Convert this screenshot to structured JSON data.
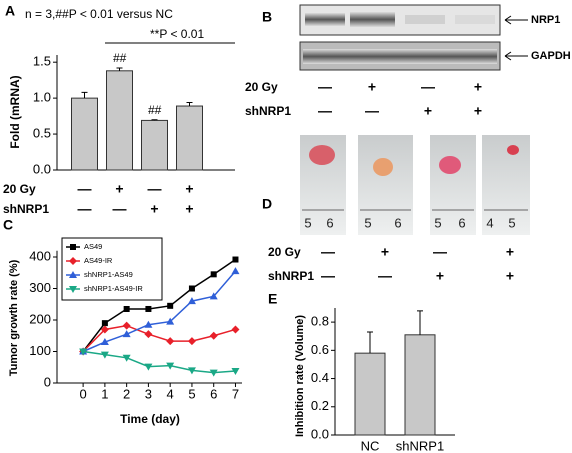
{
  "chart_data": [
    {
      "type": "bar",
      "panel": "A",
      "y_label": "Fold (mRNA)",
      "annotations": [
        "n = 3,##P < 0.01 versus NC",
        "**P < 0.01"
      ],
      "categories": [
        null,
        null,
        null,
        null
      ],
      "values": [
        1.0,
        1.38,
        0.69,
        0.89
      ],
      "errors": [
        0.08,
        0.04,
        0.01,
        0.05
      ],
      "bar_labels": [
        null,
        "##",
        "##",
        null
      ],
      "color": "#c8c8c8",
      "ylim": [
        0,
        1.6
      ],
      "yticks": [
        {
          "value": 0,
          "label": "0.0"
        },
        {
          "value": 0.5,
          "label": "0.5"
        },
        {
          "value": 1,
          "label": "1.0"
        },
        {
          "value": 1.5,
          "label": "1.5"
        }
      ],
      "conditions": [
        {
          "name": "20 Gy",
          "marks": [
            "—",
            "+",
            "—",
            "+"
          ]
        },
        {
          "name": "shNRP1",
          "marks": [
            "—",
            "—",
            "+",
            "+"
          ]
        }
      ]
    },
    {
      "type": "line",
      "panel": "C",
      "y_label": "Tumor growth rate (%)",
      "x_label": "Time (day)",
      "x": [
        0,
        1,
        2,
        3,
        4,
        5,
        6,
        7
      ],
      "series": [
        {
          "name": "AS49",
          "color": "#000000",
          "marker": "square",
          "values": [
            100,
            190,
            235,
            235,
            245,
            300,
            345,
            392
          ]
        },
        {
          "name": "AS49-IR",
          "color": "#e8202a",
          "marker": "diamond",
          "values": [
            100,
            170,
            182,
            155,
            133,
            133,
            150,
            170
          ]
        },
        {
          "name": "shNRP1-AS49",
          "color": "#2f5fd8",
          "marker": "triangle",
          "values": [
            100,
            130,
            155,
            185,
            195,
            260,
            275,
            355
          ]
        },
        {
          "name": "shNRP1-AS49-IR",
          "color": "#1aa886",
          "marker": "triangle-down",
          "values": [
            100,
            90,
            80,
            52,
            55,
            40,
            33,
            38
          ]
        }
      ],
      "xlim": [
        -1.2,
        7.3
      ],
      "xticks": [
        0,
        1,
        2,
        3,
        4,
        5,
        6,
        7
      ],
      "ylim": [
        0,
        420
      ],
      "yticks": [
        0,
        100,
        200,
        300,
        400
      ]
    },
    {
      "type": "bar",
      "panel": "E",
      "y_label": "Inhibition rate (Volume)",
      "categories": [
        "NC",
        "shNRP1"
      ],
      "values": [
        0.58,
        0.71
      ],
      "errors": [
        0.15,
        0.17
      ],
      "color": "#c8c8c8",
      "ylim": [
        0,
        0.9
      ],
      "yticks": [
        {
          "value": 0,
          "label": "0.0"
        },
        {
          "value": 0.2,
          "label": "0.2"
        },
        {
          "value": 0.4,
          "label": "0.4"
        },
        {
          "value": 0.6,
          "label": "0.6"
        },
        {
          "value": 0.8,
          "label": "0.8"
        }
      ]
    }
  ],
  "blot": {
    "panel": "B",
    "bands": [
      "NRP1",
      "GAPDH"
    ],
    "conditions": [
      {
        "name": "20 Gy",
        "marks": [
          "—",
          "+",
          "—",
          "+"
        ]
      },
      {
        "name": "shNRP1",
        "marks": [
          "—",
          "—",
          "+",
          "+"
        ]
      }
    ]
  },
  "photos": {
    "panel": "D",
    "ruler_labels": [
      [
        "5",
        "6"
      ],
      [
        "5",
        "6"
      ],
      [
        "5",
        "6"
      ],
      [
        "4",
        "5"
      ]
    ],
    "conditions": [
      {
        "name": "20 Gy",
        "marks": [
          "—",
          "+",
          "—",
          "+"
        ]
      },
      {
        "name": "shNRP1",
        "marks": [
          "—",
          "—",
          "+",
          "+"
        ]
      }
    ]
  }
}
